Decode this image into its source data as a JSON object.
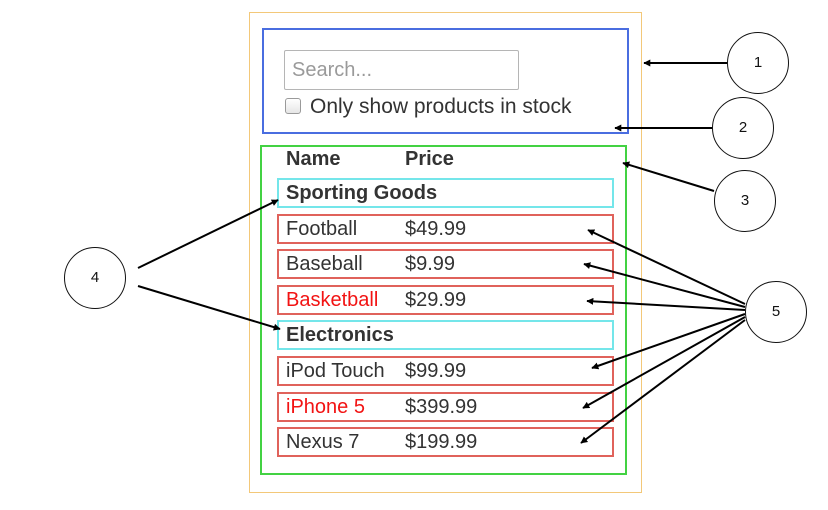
{
  "search_bar": {
    "placeholder": "Search...",
    "checkbox_label": "Only show products in stock"
  },
  "table": {
    "headers": [
      "Name",
      "Price"
    ],
    "categories": [
      {
        "name": "Sporting Goods",
        "products": [
          {
            "name": "Football",
            "price": "$49.99",
            "in_stock": true
          },
          {
            "name": "Baseball",
            "price": "$9.99",
            "in_stock": true
          },
          {
            "name": "Basketball",
            "price": "$29.99",
            "in_stock": false
          }
        ]
      },
      {
        "name": "Electronics",
        "products": [
          {
            "name": "iPod Touch",
            "price": "$99.99",
            "in_stock": true
          },
          {
            "name": "iPhone 5",
            "price": "$399.99",
            "in_stock": false
          },
          {
            "name": "Nexus 7",
            "price": "$199.99",
            "in_stock": true
          }
        ]
      }
    ]
  },
  "callouts": [
    "1",
    "2",
    "3",
    "4",
    "5"
  ],
  "colors": {
    "container": "#f3c879",
    "search_bar": "#4a6de0",
    "product_table": "#43d243",
    "category_row": "#74e6ea",
    "product_row": "#e0625b",
    "out_of_stock_text": "#f21313"
  }
}
